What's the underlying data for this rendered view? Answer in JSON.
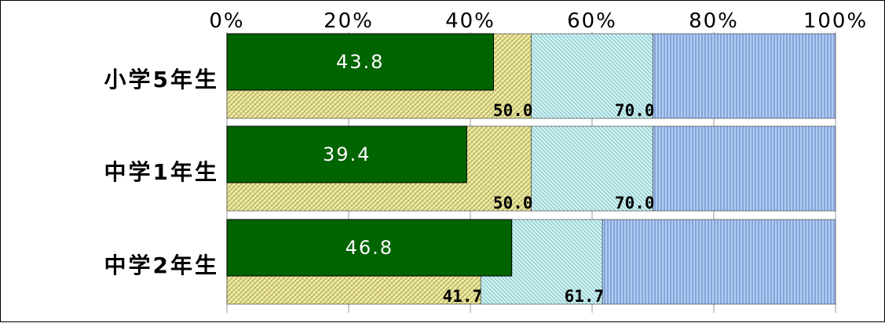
{
  "chart_data": {
    "type": "bar",
    "orientation": "horizontal-stacked-overlay",
    "xaxis": {
      "ticks": [
        "0%",
        "20%",
        "40%",
        "60%",
        "80%",
        "100%"
      ],
      "range": [
        0,
        100
      ],
      "position": "top"
    },
    "categories": [
      "小学5年生",
      "中学1年生",
      "中学2年生"
    ],
    "series_main": {
      "values": [
        43.8,
        39.4,
        46.8
      ],
      "labels": [
        "43.8",
        "39.4",
        "46.8"
      ],
      "color": "#006400"
    },
    "cumulative_bands": [
      {
        "start": 0,
        "end": 50.0,
        "end_label": "50.0",
        "color": "#f0eca0",
        "pattern": "crosshatch"
      },
      {
        "start": 50.0,
        "end": 70.0,
        "end_label": "70.0",
        "color": "#c8f0f0",
        "pattern": "diagonal"
      },
      {
        "start": 70.0,
        "end": 100,
        "end_label": "",
        "color": "#a8c8f0",
        "pattern": "vertical"
      }
    ],
    "band_boundaries": [
      {
        "first": 50.0,
        "first_label": "50.0",
        "second": 70.0,
        "second_label": "70.0"
      },
      {
        "first": 50.0,
        "first_label": "50.0",
        "second": 70.0,
        "second_label": "70.0"
      },
      {
        "first": 41.7,
        "first_label": "41.7",
        "second": 61.7,
        "second_label": "61.7"
      }
    ],
    "grid": true,
    "legend": "none"
  }
}
